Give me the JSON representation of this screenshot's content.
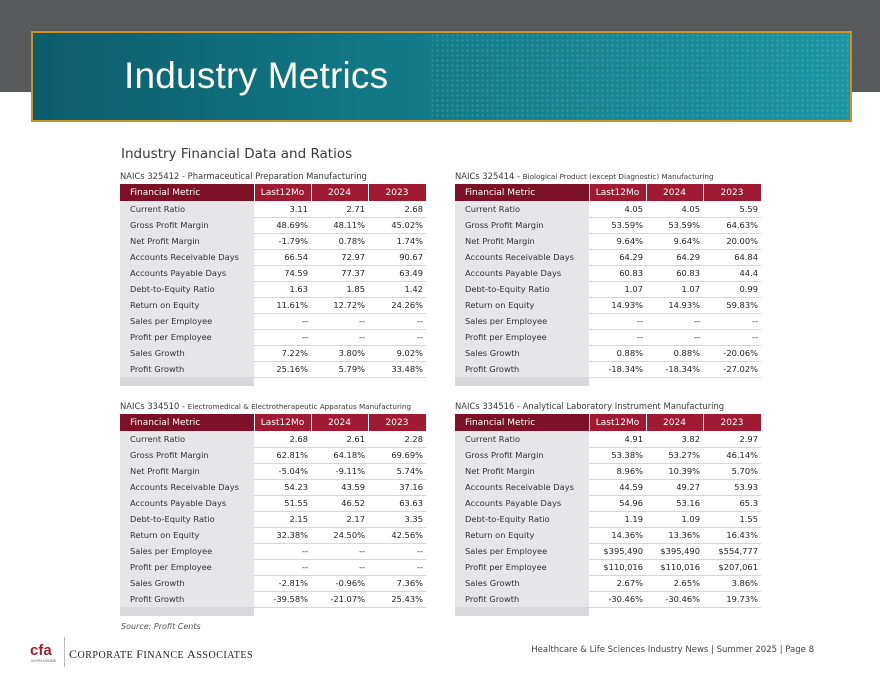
{
  "page": {
    "title": "Industry Metrics",
    "section_title": "Industry Financial Data and Ratios",
    "source": "Source: Profit Cents",
    "company": "Corporate Finance Associates",
    "company_first": "C",
    "company_rest1": "ORPORATE ",
    "company_f": "F",
    "company_rest2": "INANCE ",
    "company_a": "A",
    "company_rest3": "SSOCIATES",
    "logo_text": "cfa",
    "logo_subtext": "WORLDWIDE",
    "footer": "Healthcare  & Life Sciences Industry News | Summer 2025 | Page 8",
    "colors": {
      "header_dark": "#7d1128",
      "header": "#9e1b32",
      "banner_teal": "#127a86",
      "banner_border": "#c9932a",
      "band_gray": "#58595b"
    }
  },
  "headers": {
    "metric": "Financial Metric",
    "c1": "Last12Mo",
    "c2": "2024",
    "c3": "2023"
  },
  "tables": [
    {
      "naics": "NAICs 325412 - ",
      "industry": "Pharmaceutical Preparation Manufacturing",
      "rows": [
        [
          "Current Ratio",
          "3.11",
          "2.71",
          "2.68"
        ],
        [
          "Gross Profit Margin",
          "48.69%",
          "48.11%",
          "45.02%"
        ],
        [
          "Net Profit Margin",
          "-1.79%",
          "0.78%",
          "1.74%"
        ],
        [
          "Accounts Receivable Days",
          "66.54",
          "72.97",
          "90.67"
        ],
        [
          "Accounts Payable Days",
          "74.59",
          "77.37",
          "63.49"
        ],
        [
          "Debt-to-Equity Ratio",
          "1.63",
          "1.85",
          "1.42"
        ],
        [
          "Return on Equity",
          "11.61%",
          "12.72%",
          "24.26%"
        ],
        [
          "Sales per Employee",
          "--",
          "--",
          "--"
        ],
        [
          "Profit per Employee",
          "--",
          "--",
          "--"
        ],
        [
          "Sales Growth",
          "7.22%",
          "3.80%",
          "9.02%"
        ],
        [
          "Profit Growth",
          "25.16%",
          "5.79%",
          "33.48%"
        ]
      ]
    },
    {
      "naics": "NAICs 325414 - ",
      "industry": "Biological Product (except Diagnostic) Manufacturing",
      "rows": [
        [
          "Current Ratio",
          "4.05",
          "4.05",
          "5.59"
        ],
        [
          "Gross Profit Margin",
          "53.59%",
          "53.59%",
          "64.63%"
        ],
        [
          "Net Profit Margin",
          "9.64%",
          "9.64%",
          "20.00%"
        ],
        [
          "Accounts Receivable Days",
          "64.29",
          "64.29",
          "64.84"
        ],
        [
          "Accounts Payable Days",
          "60.83",
          "60.83",
          "44.4"
        ],
        [
          "Debt-to-Equity Ratio",
          "1.07",
          "1.07",
          "0.99"
        ],
        [
          "Return on Equity",
          "14.93%",
          "14.93%",
          "59.83%"
        ],
        [
          "Sales per Employee",
          "--",
          "--",
          "--"
        ],
        [
          "Profit per Employee",
          "--",
          "--",
          "--"
        ],
        [
          "Sales Growth",
          "0.88%",
          "0.88%",
          "-20.06%"
        ],
        [
          "Profit Growth",
          "-18.34%",
          "-18.34%",
          "-27.02%"
        ]
      ]
    },
    {
      "naics": "NAICs 334510 - ",
      "industry": "Electromedical & Electrotherapeutic Apparatus Manufacturing",
      "rows": [
        [
          "Current Ratio",
          "2.68",
          "2.61",
          "2.28"
        ],
        [
          "Gross Profit Margin",
          "62.81%",
          "64.18%",
          "69.69%"
        ],
        [
          "Net Profit Margin",
          "-5.04%",
          "-9.11%",
          "5.74%"
        ],
        [
          "Accounts Receivable Days",
          "54.23",
          "43.59",
          "37.16"
        ],
        [
          "Accounts Payable Days",
          "51.55",
          "46.52",
          "63.63"
        ],
        [
          "Debt-to-Equity Ratio",
          "2.15",
          "2.17",
          "3.35"
        ],
        [
          "Return on Equity",
          "32.38%",
          "24.50%",
          "42.56%"
        ],
        [
          "Sales per Employee",
          "--",
          "--",
          "--"
        ],
        [
          "Profit per Employee",
          "--",
          "--",
          "--"
        ],
        [
          "Sales Growth",
          "-2.81%",
          "-0.96%",
          "7.36%"
        ],
        [
          "Profit Growth",
          "-39.58%",
          "-21.07%",
          "25.43%"
        ]
      ]
    },
    {
      "naics": "NAICs 334516 - ",
      "industry": "Analytical Laboratory Instrument Manufacturing",
      "rows": [
        [
          "Current Ratio",
          "4.91",
          "3.82",
          "2.97"
        ],
        [
          "Gross Profit Margin",
          "53.38%",
          "53.27%",
          "46.14%"
        ],
        [
          "Net Profit Margin",
          "8.96%",
          "10.39%",
          "5.70%"
        ],
        [
          "Accounts Receivable Days",
          "44.59",
          "49.27",
          "53.93"
        ],
        [
          "Accounts Payable Days",
          "54.96",
          "53.16",
          "65.3"
        ],
        [
          "Debt-to-Equity Ratio",
          "1.19",
          "1.09",
          "1.55"
        ],
        [
          "Return on Equity",
          "14.36%",
          "13.36%",
          "16.43%"
        ],
        [
          "Sales per Employee",
          "$395,490",
          "$395,490",
          "$554,777"
        ],
        [
          "Profit per Employee",
          "$110,016",
          "$110,016",
          "$207,061"
        ],
        [
          "Sales Growth",
          "2.67%",
          "2.65%",
          "3.86%"
        ],
        [
          "Profit Growth",
          "-30.46%",
          "-30.46%",
          "19.73%"
        ]
      ]
    }
  ]
}
